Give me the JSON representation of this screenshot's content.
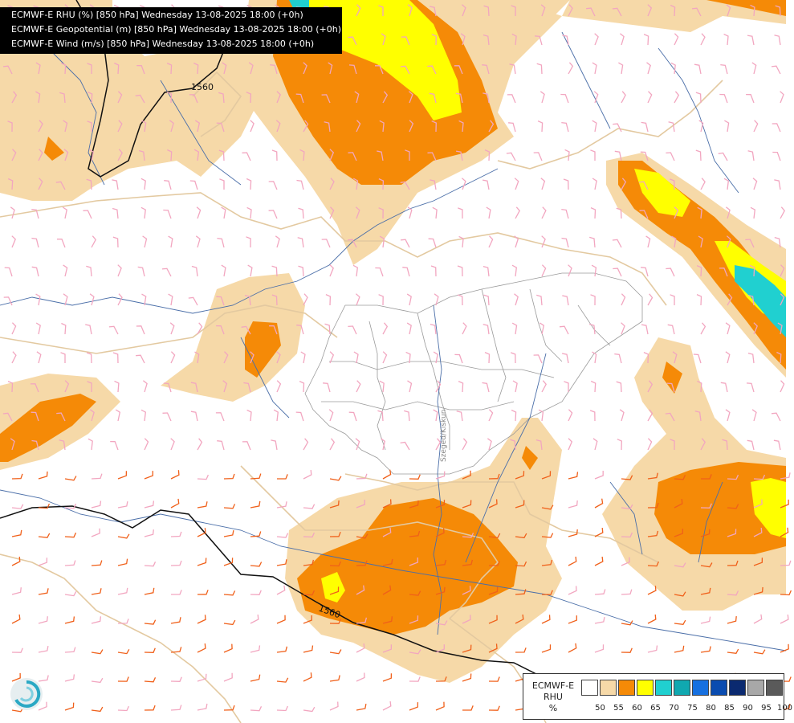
{
  "header": {
    "lines": [
      "ECMWF-E RHU (%) [850 hPa] Wednesday 13-08-2025 18:00 (+0h)",
      "ECMWF-E Geopotential (m) [850 hPa] Wednesday 13-08-2025 18:00 (+0h)",
      "ECMWF-E Wind (m/s) [850 hPa] Wednesday 13-08-2025 18:00 (+0h)"
    ]
  },
  "map": {
    "contours": [
      {
        "value": "1560",
        "label": "1560"
      },
      {
        "value": "1560",
        "label": "1560"
      }
    ],
    "place_label": "Szeged/Kiskun"
  },
  "legend": {
    "title": [
      "ECMWF-E",
      "RHU",
      "%"
    ],
    "classes": [
      {
        "label": "50",
        "color": "#ffffff"
      },
      {
        "label": "55",
        "color": "#f6d9a8"
      },
      {
        "label": "60",
        "color": "#f58a07"
      },
      {
        "label": "65",
        "color": "#ffff00"
      },
      {
        "label": "70",
        "color": "#20d0d0"
      },
      {
        "label": "75",
        "color": "#10a8b0"
      },
      {
        "label": "80",
        "color": "#1670e0"
      },
      {
        "label": "85",
        "color": "#0a4cb0"
      },
      {
        "label": "90",
        "color": "#0b2a70"
      },
      {
        "label": "95",
        "color": "#a8a8a8"
      },
      {
        "label": "100",
        "color": "#5a5a5a"
      }
    ]
  }
}
